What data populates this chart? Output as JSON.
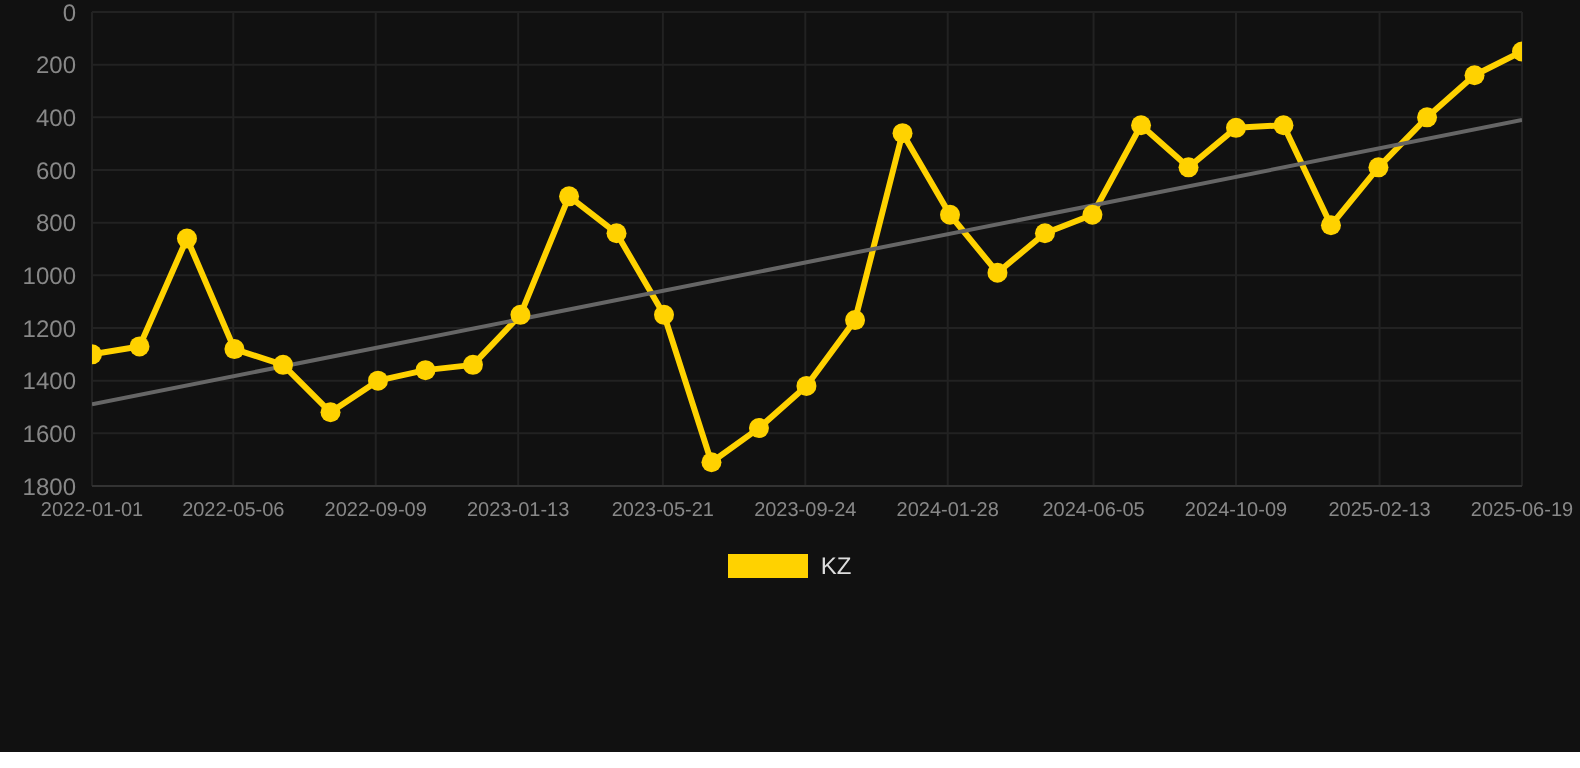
{
  "chart_data": {
    "type": "line",
    "ylim": [
      1800,
      0
    ],
    "yticks": [
      0,
      200,
      400,
      600,
      800,
      1000,
      1200,
      1400,
      1600,
      1800
    ],
    "xlim": [
      "2022-01-01",
      "2025-06-19"
    ],
    "xticks": [
      "2022-01-01",
      "2022-05-06",
      "2022-09-09",
      "2023-01-13",
      "2023-05-21",
      "2023-09-24",
      "2024-01-28",
      "2024-06-05",
      "2024-10-09",
      "2025-02-13",
      "2025-06-19"
    ],
    "grid": true,
    "legend": "bottom",
    "marker": "circle",
    "line_style": "solid",
    "series": [
      {
        "name": "KZ",
        "color": "#ffd200",
        "x": [
          "2022-01-01",
          "2022-02-12",
          "2022-03-26",
          "2022-05-07",
          "2022-06-19",
          "2022-07-31",
          "2022-09-11",
          "2022-10-23",
          "2022-12-04",
          "2023-01-15",
          "2023-02-27",
          "2023-04-10",
          "2023-05-22",
          "2023-07-03",
          "2023-08-14",
          "2023-09-25",
          "2023-11-07",
          "2023-12-19",
          "2024-01-30",
          "2024-03-12",
          "2024-04-23",
          "2024-06-04",
          "2024-07-17",
          "2024-08-28",
          "2024-10-09",
          "2024-11-20",
          "2025-01-01",
          "2025-02-12",
          "2025-03-27",
          "2025-05-08",
          "2025-06-19"
        ],
        "values": [
          1300,
          1270,
          860,
          1280,
          1340,
          1520,
          1400,
          1360,
          1340,
          1150,
          700,
          840,
          1150,
          1710,
          1580,
          1420,
          1170,
          460,
          770,
          990,
          840,
          770,
          430,
          590,
          440,
          430,
          810,
          590,
          400,
          240,
          150
        ]
      },
      {
        "type": "line",
        "color": "#666666",
        "marker": "none",
        "x": [
          "2022-01-01",
          "2025-06-19"
        ],
        "values": [
          1490,
          410
        ]
      }
    ]
  }
}
